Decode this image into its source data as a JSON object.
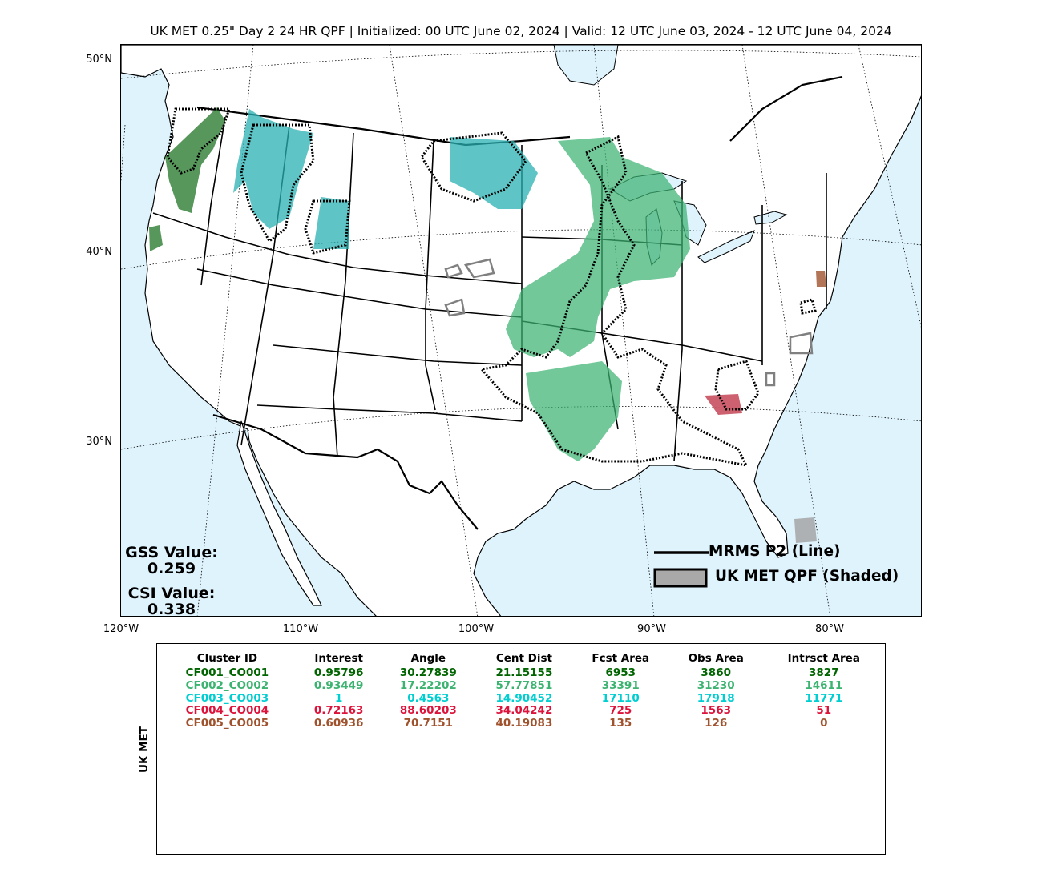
{
  "title": "UK MET 0.25\" Day 2 24 HR QPF | Initialized: 00 UTC June 02, 2024 | Valid: 12 UTC June 03, 2024 - 12 UTC June 04, 2024",
  "map": {
    "ocean_color": "#dff3fd",
    "land_color": "#ffffff",
    "lat_labels": [
      "50°N",
      "40°N",
      "30°N"
    ],
    "lon_labels": [
      "120°W",
      "110°W",
      "100°W",
      "90°W",
      "80°W"
    ]
  },
  "scores": {
    "gss_label": "GSS Value:",
    "gss_value": "0.259",
    "csi_label": "CSI Value:",
    "csi_value": "0.338"
  },
  "legend": {
    "line_label": "MRMS P2 (Line)",
    "shade_label": "UK MET QPF (Shaded)"
  },
  "table": {
    "side_label": "UK MET",
    "headers": [
      "Cluster ID",
      "Interest",
      "Angle",
      "Cent Dist",
      "Fcst Area",
      "Obs Area",
      "Intrsct Area"
    ],
    "rows": [
      {
        "color": "#006400",
        "cells": [
          "CF001_CO001",
          "0.95796",
          "30.27839",
          "21.15155",
          "6953",
          "3860",
          "3827"
        ]
      },
      {
        "color": "#3cb371",
        "cells": [
          "CF002_CO002",
          "0.93449",
          "17.22202",
          "57.77851",
          "33391",
          "31230",
          "14611"
        ]
      },
      {
        "color": "#00ced1",
        "cells": [
          "CF003_CO003",
          "1",
          "0.4563",
          "14.90452",
          "17110",
          "17918",
          "11771"
        ]
      },
      {
        "color": "#dc143c",
        "cells": [
          "CF004_CO004",
          "0.72163",
          "88.60203",
          "34.04242",
          "725",
          "1563",
          "51"
        ]
      },
      {
        "color": "#a0522d",
        "cells": [
          "CF005_CO005",
          "0.60936",
          "70.7151",
          "40.19083",
          "135",
          "126",
          "0"
        ]
      }
    ]
  }
}
